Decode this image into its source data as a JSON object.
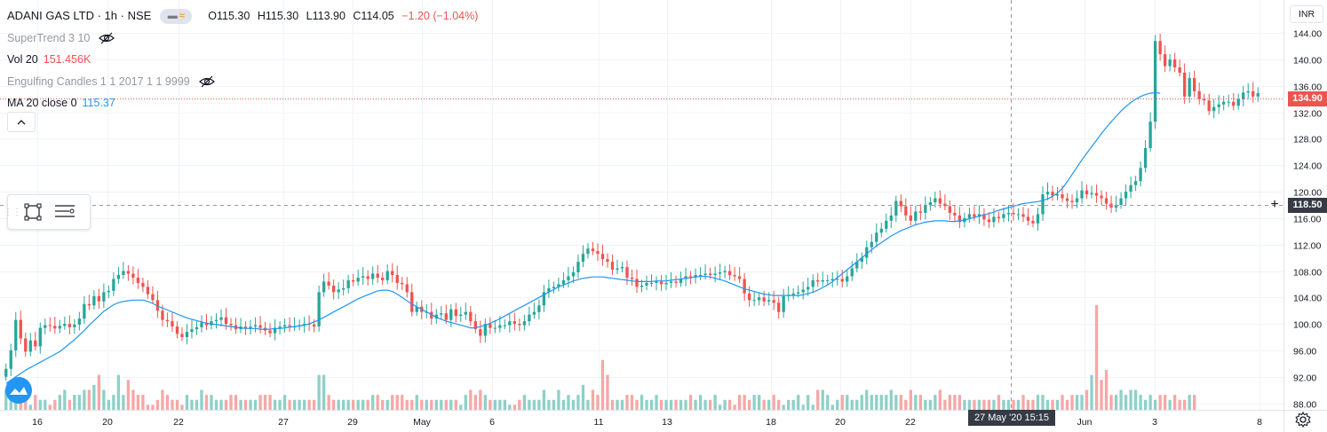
{
  "header": {
    "symbol_title": "ADANI GAS LTD · 1h · NSE",
    "ohlc": {
      "open": "O115.30",
      "high": "H115.30",
      "low": "L113.90",
      "close": "C114.05",
      "change": "−1.20 (−1.04%)"
    }
  },
  "indicators": [
    {
      "name": "SuperTrend 3 10",
      "value": "",
      "hidden": true
    },
    {
      "name": "Vol 20",
      "value": "151.456K",
      "hidden": false
    },
    {
      "name": "Engulfing Candles 1 1 2017 1 1 9999",
      "value": "",
      "hidden": true
    },
    {
      "name": "MA 20 close 0",
      "value": "115.37",
      "hidden": false
    }
  ],
  "price_axis": {
    "currency": "INR",
    "last_price_label": "134.90",
    "crosshair_price_label": "118.50"
  },
  "time_axis": {
    "crosshair_date_label": "27 May '20  15:15"
  },
  "colors": {
    "up": "#26a69a",
    "down": "#ef5350",
    "ma": "#2196f3",
    "vol_up": "#8ed0c8",
    "vol_down": "#f5a8a6",
    "grid": "#f0f3fa"
  },
  "chart_data": {
    "type": "candlestick",
    "title": "ADANI GAS LTD · 1h · NSE",
    "y_ticks": [
      88,
      92,
      96,
      100,
      104,
      108,
      112,
      116,
      120,
      124,
      128,
      132,
      136,
      140,
      144
    ],
    "y_range": [
      87,
      149
    ],
    "x_ticks": [
      "16",
      "20",
      "22",
      "27",
      "29",
      "May",
      "6",
      "11",
      "13",
      "18",
      "20",
      "22",
      "27 May '20",
      "Jun",
      "3",
      "8"
    ],
    "last_price": 134.9,
    "crosshair_price": 118.5,
    "series": [
      {
        "name": "price",
        "close": [
          93.2,
          96.0,
          100.6,
          97.8,
          95.8,
          97.5,
          96.6,
          99.4,
          99.8,
          99.7,
          99.3,
          99.7,
          100.0,
          99.5,
          99.9,
          100.8,
          103.0,
          102.8,
          104.2,
          103.4,
          104.8,
          105.0,
          106.8,
          107.4,
          108.0,
          107.6,
          107.0,
          106.2,
          105.6,
          104.5,
          103.6,
          102.0,
          100.6,
          100.4,
          99.6,
          98.5,
          98.0,
          98.8,
          99.2,
          99.5,
          100.2,
          99.8,
          100.4,
          100.6,
          101.0,
          100.0,
          99.8,
          99.2,
          99.6,
          99.4,
          99.6,
          99.8,
          99.4,
          99.0,
          98.6,
          99.4,
          99.6,
          99.8,
          99.6,
          99.6,
          99.8,
          100.0,
          99.9,
          99.6,
          104.8,
          106.4,
          105.8,
          104.8,
          105.2,
          105.4,
          106.6,
          106.4,
          107.0,
          107.2,
          106.8,
          107.6,
          107.0,
          106.6,
          108.0,
          107.4,
          106.2,
          106.0,
          104.8,
          101.8,
          102.6,
          101.8,
          101.8,
          100.8,
          101.4,
          101.6,
          100.6,
          102.2,
          101.2,
          101.4,
          101.8,
          100.4,
          99.2,
          98.2,
          100.0,
          99.4,
          99.4,
          99.8,
          99.8,
          100.4,
          100.0,
          99.8,
          100.4,
          101.4,
          101.8,
          102.8,
          104.8,
          105.4,
          105.6,
          106.0,
          106.6,
          107.2,
          107.8,
          109.4,
          110.6,
          111.4,
          111.0,
          110.6,
          109.8,
          109.4,
          108.2,
          108.4,
          108.6,
          107.0,
          106.8,
          105.6,
          105.8,
          106.2,
          106.2,
          106.4,
          106.0,
          106.2,
          106.4,
          106.2,
          106.8,
          107.2,
          107.0,
          107.4,
          107.4,
          107.6,
          107.4,
          107.6,
          107.8,
          108.0,
          107.4,
          107.2,
          106.8,
          104.6,
          103.6,
          103.6,
          104.0,
          103.4,
          103.6,
          103.2,
          101.8,
          104.2,
          104.4,
          104.6,
          104.8,
          105.2,
          105.6,
          106.6,
          106.4,
          106.6,
          106.6,
          106.8,
          106.8,
          106.4,
          107.2,
          108.4,
          109.4,
          110.0,
          111.6,
          112.4,
          113.8,
          114.4,
          115.6,
          116.4,
          118.6,
          117.8,
          116.4,
          115.6,
          117.0,
          116.8,
          118.0,
          118.4,
          119.0,
          118.2,
          117.8,
          116.8,
          116.4,
          115.4,
          116.0,
          116.6,
          116.2,
          116.6,
          115.8,
          115.4,
          116.2,
          116.0,
          116.6,
          116.8,
          116.6,
          116.6,
          116.2,
          115.6,
          115.2,
          116.6,
          119.6,
          120.0,
          119.4,
          119.6,
          119.0,
          118.6,
          118.4,
          119.0,
          120.2,
          119.6,
          119.8,
          119.4,
          119.0,
          118.2,
          117.6,
          118.0,
          119.0,
          120.0,
          121.0,
          121.6,
          123.6,
          126.6,
          130.6,
          142.8,
          140.8,
          139.0,
          140.0,
          138.8,
          138.0,
          134.4,
          137.2,
          135.2,
          134.0,
          133.8,
          132.2,
          132.8,
          133.2,
          133.6,
          133.6,
          133.0,
          134.0,
          135.0,
          135.2,
          134.4,
          134.9
        ]
      },
      {
        "name": "MA 20 close 0",
        "values": [
          91.0,
          91.5,
          92.0,
          92.5,
          93.0,
          93.4,
          93.8,
          94.2,
          94.6,
          95.0,
          95.4,
          95.8,
          96.4,
          97.0,
          97.6,
          98.3,
          99.0,
          99.8,
          100.5,
          101.2,
          101.9,
          102.4,
          102.9,
          103.2,
          103.4,
          103.5,
          103.6,
          103.6,
          103.6,
          103.4,
          103.1,
          102.7,
          102.4,
          102.1,
          101.8,
          101.5,
          101.2,
          100.9,
          100.7,
          100.5,
          100.3,
          100.1,
          100.0,
          99.9,
          99.8,
          99.7,
          99.6,
          99.5,
          99.4,
          99.3,
          99.3,
          99.3,
          99.2,
          99.2,
          99.2,
          99.3,
          99.3,
          99.4,
          99.5,
          99.6,
          99.7,
          99.8,
          100.0,
          100.3,
          100.6,
          101.0,
          101.4,
          101.8,
          102.2,
          102.6,
          103.0,
          103.4,
          103.8,
          104.1,
          104.4,
          104.7,
          105.0,
          105.1,
          105.1,
          104.9,
          104.5,
          104.0,
          103.5,
          103.0,
          102.6,
          102.2,
          101.8,
          101.4,
          101.0,
          100.7,
          100.4,
          100.2,
          100.0,
          99.8,
          99.6,
          99.4,
          99.4,
          99.6,
          99.8,
          100.1,
          100.4,
          100.8,
          101.2,
          101.6,
          102.0,
          102.4,
          102.8,
          103.2,
          103.6,
          104.0,
          104.4,
          104.8,
          105.2,
          105.6,
          105.9,
          106.2,
          106.5,
          106.7,
          106.9,
          107.0,
          107.1,
          107.1,
          107.1,
          107.0,
          106.9,
          106.8,
          106.7,
          106.6,
          106.5,
          106.4,
          106.4,
          106.4,
          106.4,
          106.5,
          106.5,
          106.5,
          106.6,
          106.7,
          106.8,
          106.9,
          107.0,
          107.1,
          107.2,
          107.2,
          107.1,
          106.9,
          106.7,
          106.5,
          106.2,
          105.9,
          105.6,
          105.3,
          105.1,
          104.9,
          104.7,
          104.5,
          104.4,
          104.3,
          104.3,
          104.3,
          104.3,
          104.3,
          104.3,
          104.4,
          104.6,
          104.8,
          105.1,
          105.5,
          105.9,
          106.4,
          107.0,
          107.6,
          108.2,
          108.8,
          109.4,
          110.0,
          110.6,
          111.2,
          111.8,
          112.3,
          112.8,
          113.3,
          113.7,
          114.1,
          114.4,
          114.7,
          115.0,
          115.2,
          115.4,
          115.5,
          115.6,
          115.6,
          115.6,
          115.5,
          115.5,
          115.6,
          115.7,
          115.9,
          116.1,
          116.3,
          116.5,
          116.7,
          116.9,
          117.2,
          117.4,
          117.6,
          117.8,
          118.0,
          118.2,
          118.3,
          118.4,
          118.5,
          118.7,
          118.9,
          119.3,
          119.8,
          120.5,
          121.5,
          122.6,
          123.7,
          124.8,
          125.8,
          126.8,
          127.8,
          128.8,
          129.7,
          130.6,
          131.4,
          132.2,
          132.9,
          133.5,
          134.0,
          134.4,
          134.7,
          134.9,
          135.0,
          134.9
        ]
      },
      {
        "name": "Vol 20",
        "values": [
          31,
          30,
          32,
          29,
          31,
          28,
          30,
          29,
          29,
          28,
          29,
          30,
          31,
          29,
          30,
          30,
          31,
          31,
          32,
          34,
          31,
          29,
          30,
          34,
          30,
          33,
          31,
          30,
          30,
          28,
          28,
          29,
          31,
          30,
          29,
          29,
          28,
          30,
          29,
          29,
          31,
          30,
          30,
          29,
          29,
          29,
          30,
          30,
          29,
          29,
          29,
          29,
          30,
          30,
          30,
          29,
          29,
          30,
          29,
          29,
          29,
          29,
          29,
          29,
          34,
          34,
          30,
          29,
          29,
          29,
          29,
          29,
          29,
          29,
          29,
          30,
          30,
          29,
          29,
          30,
          30,
          30,
          29,
          29,
          30,
          29,
          29,
          29,
          29,
          29,
          29,
          29,
          29,
          28,
          30,
          31,
          30,
          31,
          30,
          29,
          29,
          29,
          29,
          28,
          28,
          29,
          30,
          29,
          29,
          29,
          31,
          29,
          29,
          31,
          29,
          30,
          29,
          30,
          32,
          29,
          31,
          30,
          37,
          34,
          29,
          29,
          29,
          30,
          30,
          29,
          30,
          29,
          29,
          30,
          29,
          29,
          29,
          29,
          29,
          29,
          30,
          29,
          30,
          29,
          29,
          30,
          28,
          29,
          29,
          28,
          30,
          30,
          29,
          30,
          30,
          29,
          29,
          30,
          29,
          28,
          29,
          29,
          30,
          28,
          30,
          28,
          31,
          31,
          30,
          28,
          29,
          30,
          30,
          29,
          29,
          30,
          31,
          30,
          30,
          30,
          30,
          31,
          30,
          30,
          29,
          31,
          30,
          30,
          29,
          29,
          30,
          31,
          29,
          30,
          30,
          30,
          29,
          29,
          29,
          29,
          29,
          29,
          29,
          30,
          29,
          29,
          29,
          29,
          30,
          29,
          29,
          30,
          30,
          29,
          29,
          29,
          30,
          29,
          30,
          30,
          30,
          31,
          34,
          48,
          33,
          35,
          30,
          30,
          31,
          30,
          31,
          31,
          30,
          29,
          30,
          29,
          30,
          30,
          29,
          30,
          29,
          29,
          30,
          30
        ]
      }
    ]
  }
}
